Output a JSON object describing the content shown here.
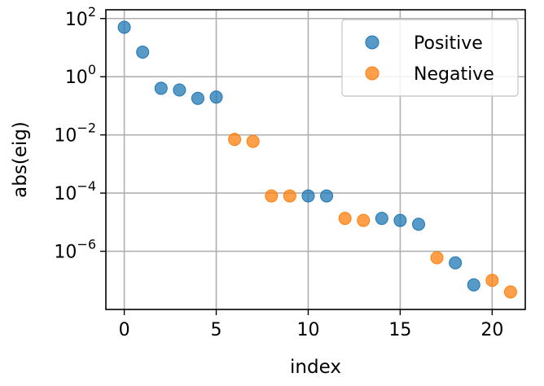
{
  "chart_data": {
    "type": "scatter",
    "xlabel": "index",
    "ylabel": "abs(eig)",
    "y_scale": "log",
    "xlim": [
      -1,
      21.8
    ],
    "ylim": [
      1e-08,
      200.0
    ],
    "grid": true,
    "legend_position": "top-right",
    "x_ticks": [
      0,
      5,
      10,
      15,
      20
    ],
    "y_ticks": [
      {
        "value": 100,
        "base": "10",
        "exp": "2"
      },
      {
        "value": 1,
        "base": "10",
        "exp": "0"
      },
      {
        "value": 0.01,
        "base": "10",
        "exp": "−2"
      },
      {
        "value": 0.0001,
        "base": "10",
        "exp": "−4"
      },
      {
        "value": 1e-06,
        "base": "10",
        "exp": "−6"
      }
    ],
    "series": [
      {
        "name": "Positive",
        "color": "#1f77b4",
        "points": [
          {
            "x": 0,
            "y": 50
          },
          {
            "x": 1,
            "y": 7
          },
          {
            "x": 2,
            "y": 0.4
          },
          {
            "x": 3,
            "y": 0.35
          },
          {
            "x": 4,
            "y": 0.18
          },
          {
            "x": 5,
            "y": 0.2
          },
          {
            "x": 10,
            "y": 8e-05
          },
          {
            "x": 11,
            "y": 8e-05
          },
          {
            "x": 14,
            "y": 1.35e-05
          },
          {
            "x": 15,
            "y": 1.15e-05
          },
          {
            "x": 16,
            "y": 8.5e-06
          },
          {
            "x": 18,
            "y": 4e-07
          },
          {
            "x": 19,
            "y": 7e-08
          }
        ]
      },
      {
        "name": "Negative",
        "color": "#ff7f0e",
        "points": [
          {
            "x": 6,
            "y": 0.007
          },
          {
            "x": 7,
            "y": 0.006
          },
          {
            "x": 8,
            "y": 8e-05
          },
          {
            "x": 9,
            "y": 8e-05
          },
          {
            "x": 12,
            "y": 1.35e-05
          },
          {
            "x": 13,
            "y": 1.15e-05
          },
          {
            "x": 17,
            "y": 6e-07
          },
          {
            "x": 20,
            "y": 1e-07
          },
          {
            "x": 21,
            "y": 4e-08
          }
        ]
      }
    ]
  }
}
